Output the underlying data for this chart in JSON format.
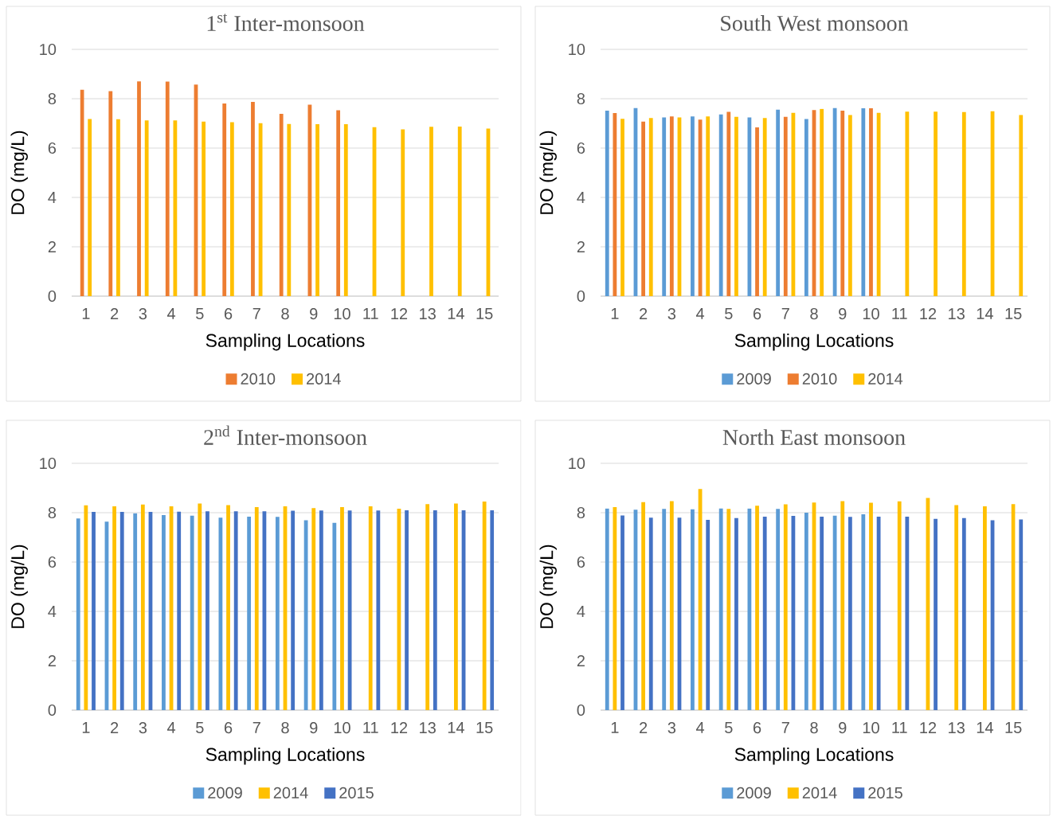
{
  "chart_data": [
    {
      "type": "bar",
      "title": "1$^{st}$ Inter-monsoon",
      "xlabel": "Sampling Locations",
      "ylabel": "DO (mg/L)",
      "categories": [
        "1",
        "2",
        "3",
        "4",
        "5",
        "6",
        "7",
        "8",
        "9",
        "10",
        "11",
        "12",
        "13",
        "14",
        "15"
      ],
      "ylim": [
        0,
        10
      ],
      "yticks": [
        0,
        2,
        4,
        6,
        8,
        10
      ],
      "grid": "y",
      "legend": "bottom",
      "series": [
        {
          "name": "2010",
          "color": "#ed7d31",
          "values": [
            8.36,
            8.31,
            8.7,
            8.69,
            8.57,
            7.81,
            7.87,
            7.39,
            7.76,
            7.53,
            null,
            null,
            null,
            null,
            null
          ]
        },
        {
          "name": "2014",
          "color": "#ffc000",
          "values": [
            7.18,
            7.17,
            7.12,
            7.12,
            7.07,
            7.05,
            7.01,
            6.98,
            6.97,
            6.97,
            6.85,
            6.76,
            6.86,
            6.87,
            6.79
          ]
        }
      ]
    },
    {
      "type": "bar",
      "title": "South West monsoon",
      "xlabel": "Sampling Locations",
      "ylabel": "DO (mg/L)",
      "categories": [
        "1",
        "2",
        "3",
        "4",
        "5",
        "6",
        "7",
        "8",
        "9",
        "10",
        "11",
        "12",
        "13",
        "14",
        "15"
      ],
      "ylim": [
        0,
        10
      ],
      "yticks": [
        0,
        2,
        4,
        6,
        8,
        10
      ],
      "grid": "y",
      "legend": "bottom",
      "series": [
        {
          "name": "2009",
          "color": "#5b9bd5",
          "values": [
            7.52,
            7.62,
            7.24,
            7.28,
            7.36,
            7.24,
            7.56,
            7.18,
            7.62,
            7.61,
            null,
            null,
            null,
            null,
            null
          ]
        },
        {
          "name": "2010",
          "color": "#ed7d31",
          "values": [
            7.42,
            7.07,
            7.28,
            7.15,
            7.47,
            6.84,
            7.27,
            7.54,
            7.52,
            7.61,
            null,
            null,
            null,
            null,
            null
          ]
        },
        {
          "name": "2014",
          "color": "#ffc000",
          "values": [
            7.19,
            7.22,
            7.24,
            7.28,
            7.27,
            7.22,
            7.43,
            7.59,
            7.34,
            7.43,
            7.48,
            7.48,
            7.46,
            7.49,
            7.34
          ]
        }
      ]
    },
    {
      "type": "bar",
      "title": "2$^{nd}$ Inter-monsoon",
      "xlabel": "Sampling Locations",
      "ylabel": "DO (mg/L)",
      "categories": [
        "1",
        "2",
        "3",
        "4",
        "5",
        "6",
        "7",
        "8",
        "9",
        "10",
        "11",
        "12",
        "13",
        "14",
        "15"
      ],
      "ylim": [
        0,
        10
      ],
      "yticks": [
        0,
        2,
        4,
        6,
        8,
        10
      ],
      "grid": "y",
      "legend": "bottom",
      "series": [
        {
          "name": "2009",
          "color": "#5b9bd5",
          "values": [
            7.77,
            7.64,
            7.98,
            7.9,
            7.88,
            7.8,
            7.84,
            7.83,
            7.69,
            7.59,
            null,
            null,
            null,
            null,
            null
          ]
        },
        {
          "name": "2014",
          "color": "#ffc000",
          "values": [
            8.3,
            8.26,
            8.33,
            8.26,
            8.37,
            8.31,
            8.23,
            8.26,
            8.19,
            8.23,
            8.26,
            8.16,
            8.35,
            8.37,
            8.45
          ]
        },
        {
          "name": "2015",
          "color": "#4472c4",
          "values": [
            8.03,
            8.03,
            8.03,
            8.04,
            8.06,
            8.06,
            8.06,
            8.08,
            8.09,
            8.09,
            8.09,
            8.1,
            8.1,
            8.1,
            8.1
          ]
        }
      ]
    },
    {
      "type": "bar",
      "title": "North East monsoon",
      "xlabel": "Sampling Locations",
      "ylabel": "DO (mg/L)",
      "categories": [
        "1",
        "2",
        "3",
        "4",
        "5",
        "6",
        "7",
        "8",
        "9",
        "10",
        "11",
        "12",
        "13",
        "14",
        "15"
      ],
      "ylim": [
        0,
        10
      ],
      "yticks": [
        0,
        2,
        4,
        6,
        8,
        10
      ],
      "grid": "y",
      "legend": "bottom",
      "series": [
        {
          "name": "2009",
          "color": "#5b9bd5",
          "values": [
            8.17,
            8.12,
            8.15,
            8.14,
            8.18,
            8.17,
            8.15,
            8.0,
            7.88,
            7.94,
            null,
            null,
            null,
            null,
            null
          ]
        },
        {
          "name": "2014",
          "color": "#ffc000",
          "values": [
            8.23,
            8.43,
            8.47,
            8.96,
            8.15,
            8.28,
            8.34,
            8.41,
            8.47,
            8.4,
            8.46,
            8.6,
            8.31,
            8.26,
            8.35
          ]
        },
        {
          "name": "2015",
          "color": "#4472c4",
          "values": [
            7.89,
            7.8,
            7.8,
            7.71,
            7.78,
            7.84,
            7.87,
            7.84,
            7.83,
            7.84,
            7.84,
            7.75,
            7.78,
            7.69,
            7.73
          ]
        }
      ]
    }
  ]
}
